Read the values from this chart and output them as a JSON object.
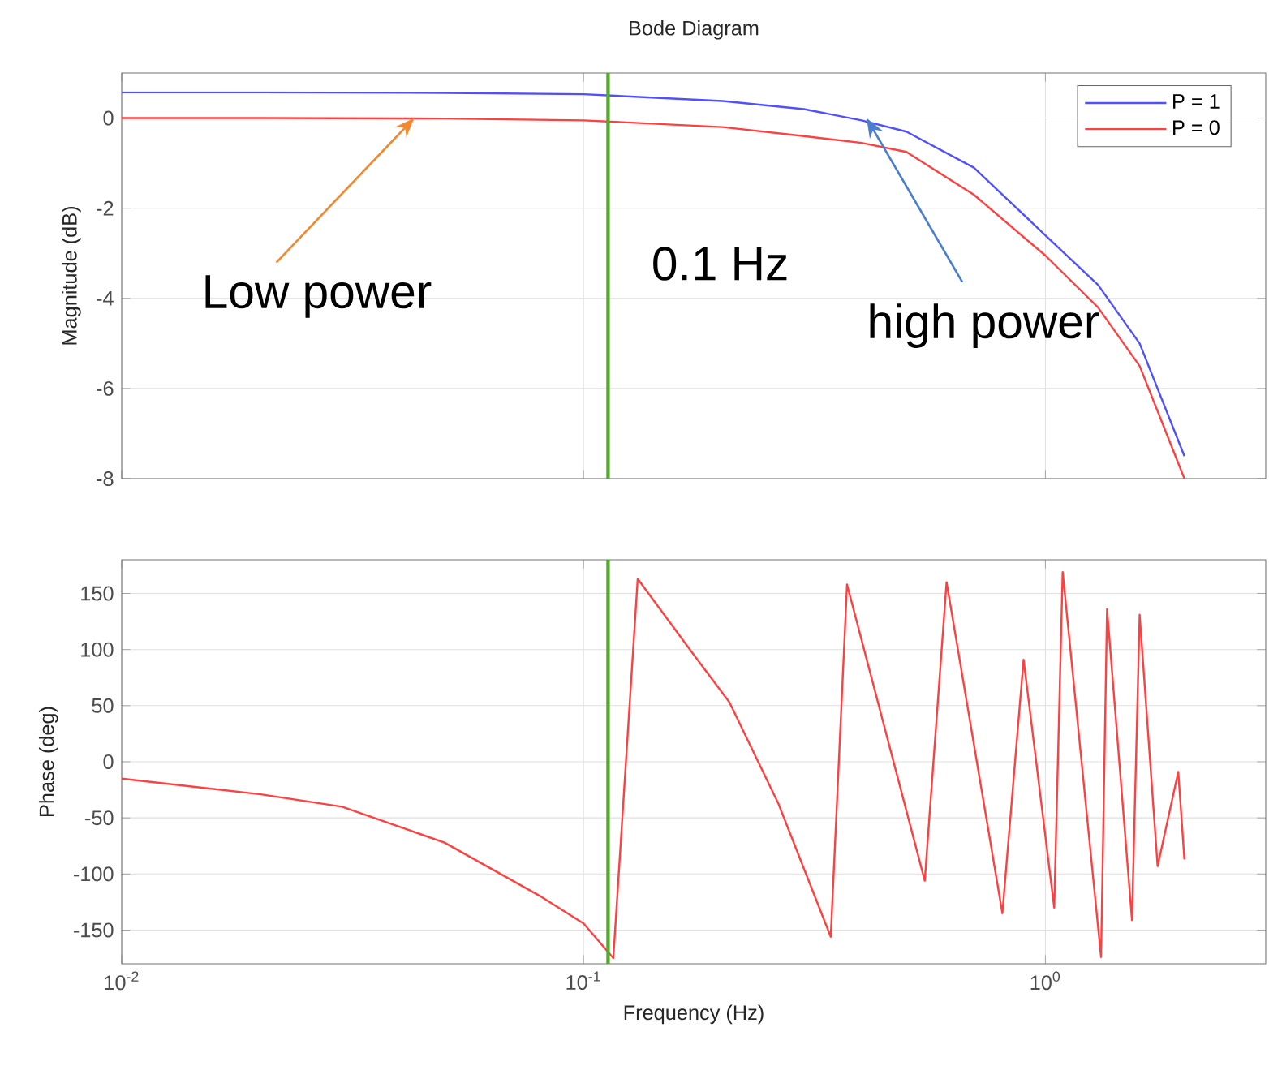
{
  "chart_data": [
    {
      "type": "line",
      "title": "Bode Diagram",
      "ylabel": "Magnitude (dB)",
      "log": "x",
      "grid": true,
      "legend": "top right",
      "tick_labels": "y",
      "marker": "none",
      "line_style": "solid",
      "x": [
        0.01,
        0.02,
        0.05,
        0.1,
        0.2,
        0.3,
        0.4,
        0.5,
        0.7,
        1,
        1.3,
        1.6,
        2
      ],
      "series": [
        {
          "name": "P = 1",
          "color": "#5050ff",
          "values": [
            0.57,
            0.57,
            0.56,
            0.53,
            0.38,
            0.2,
            -0.05,
            -0.3,
            -1.1,
            -2.6,
            -3.7,
            -5.0,
            -7.5
          ]
        },
        {
          "name": "P = 0",
          "color": "#ff4040",
          "values": [
            0,
            0,
            -0.01,
            -0.05,
            -0.2,
            -0.4,
            -0.55,
            -0.75,
            -1.7,
            -3.05,
            -4.2,
            -5.5,
            -8
          ]
        }
      ],
      "xlim": [
        0.01,
        3
      ],
      "ylim": [
        -8,
        1
      ],
      "xticks": [
        {
          "value": 0.01,
          "label": null
        },
        {
          "value": 0.1,
          "label": null
        },
        {
          "value": 1,
          "label": null
        }
      ],
      "yticks": [
        -8,
        -6,
        -4,
        -2,
        0
      ],
      "ref_lines": [
        {
          "axis": "x",
          "value": 0.113,
          "label": "0.1 Hz",
          "color": "#4caf24"
        }
      ],
      "annotations": [
        {
          "text": "Low power",
          "x": 0.043,
          "y": 0
        },
        {
          "text": "high power",
          "x": 0.41,
          "y": 0
        }
      ]
    },
    {
      "type": "line",
      "ylabel": "Phase (deg)",
      "xlabel": "Frequency (Hz)",
      "log": "x",
      "grid": true,
      "marker": "none",
      "line_style": "solid",
      "x": [
        0.01,
        0.02,
        0.03,
        0.05,
        0.08,
        0.1,
        0.116,
        0.131,
        0.17,
        0.207,
        0.264,
        0.343,
        0.372,
        0.548,
        0.611,
        0.807,
        0.897,
        1.045,
        1.09,
        1.32,
        1.36,
        1.54,
        1.6,
        1.75,
        1.94,
        2.0
      ],
      "series": [
        {
          "color": "#ff4040",
          "values": [
            -15,
            -29,
            -40,
            -72,
            -119,
            -144,
            -175,
            163,
            100,
            53,
            -37,
            -156,
            158,
            -106,
            160,
            -135,
            91,
            -130,
            169,
            -174,
            136,
            -141,
            131,
            -93,
            -9,
            -87
          ]
        }
      ],
      "xlim": [
        0.01,
        3
      ],
      "ylim": [
        -180,
        180
      ],
      "xticks": [
        {
          "value": 0.01,
          "label": "10$^{-2}$"
        },
        {
          "value": 0.1,
          "label": "10$^{-1}$"
        },
        {
          "value": 1,
          "label": "10$^{0}$"
        }
      ],
      "yticks": [
        -150,
        -100,
        -50,
        0,
        50,
        100,
        150
      ],
      "ref_lines": [
        {
          "axis": "x",
          "value": 0.113,
          "color": "#4caf24"
        }
      ]
    }
  ]
}
